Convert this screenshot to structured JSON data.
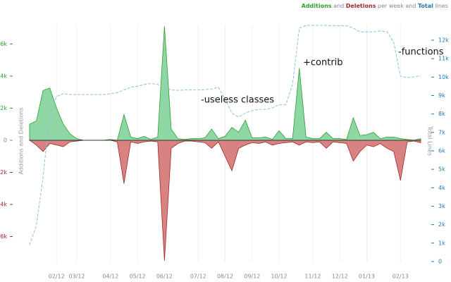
{
  "chart_data": {
    "type": "area",
    "legend_parts": [
      " and ",
      " per week and ",
      " lines"
    ],
    "ylabel": "Additions and Deletions",
    "y2label": "Total Lines",
    "annotations": [
      "-useless classes",
      "+contrib",
      "-functions"
    ],
    "categories": [
      null,
      null,
      null,
      null,
      "02/12",
      null,
      null,
      "03/12",
      null,
      null,
      null,
      null,
      "04/12",
      null,
      null,
      null,
      "05/12",
      null,
      null,
      null,
      "06/12",
      null,
      null,
      null,
      null,
      "07/12",
      null,
      null,
      null,
      "08/12",
      null,
      null,
      null,
      "09/12",
      null,
      null,
      null,
      "10/12",
      null,
      null,
      null,
      null,
      "11/12",
      null,
      null,
      null,
      "12/12",
      null,
      null,
      null,
      "01/13",
      null,
      null,
      null,
      null,
      "02/13",
      null,
      null,
      null
    ],
    "series": [
      {
        "name": "Additions",
        "color": "#2ca02c",
        "fill": "#8ed6a4",
        "values": [
          1000,
          1200,
          3100,
          3250,
          2000,
          1000,
          400,
          100,
          0,
          0,
          0,
          0,
          50,
          0,
          1600,
          200,
          100,
          250,
          50,
          200,
          7100,
          700,
          100,
          50,
          100,
          100,
          150,
          700,
          100,
          250,
          800,
          500,
          1250,
          150,
          150,
          200,
          50,
          600,
          100,
          100,
          4500,
          200,
          100,
          100,
          500,
          100,
          100,
          50,
          1400,
          300,
          350,
          500,
          100,
          200,
          200,
          100,
          50,
          0,
          100
        ]
      },
      {
        "name": "Deletions",
        "color": "#a02828",
        "fill": "#d98282",
        "values": [
          0,
          -300,
          -700,
          -200,
          -300,
          -400,
          -100,
          -50,
          0,
          0,
          0,
          0,
          0,
          -100,
          -2700,
          -100,
          -200,
          -100,
          -50,
          -100,
          -7500,
          -500,
          -200,
          -50,
          -50,
          -100,
          -150,
          -500,
          -100,
          -1000,
          -1900,
          -500,
          -300,
          -150,
          -200,
          -100,
          -300,
          -200,
          -150,
          -100,
          -300,
          -100,
          -150,
          -100,
          -500,
          -100,
          -150,
          -200,
          -1300,
          -700,
          -300,
          -400,
          -200,
          -500,
          -700,
          -2500,
          -100,
          -50,
          -150
        ]
      },
      {
        "name": "Total",
        "color": "#1f77b4",
        "line": "#8cc0e8",
        "axis": "y2",
        "values": [
          900,
          1950,
          4600,
          8050,
          8950,
          9100,
          9050,
          9050,
          9050,
          9050,
          9050,
          9050,
          9100,
          9150,
          9300,
          9450,
          9500,
          9600,
          9650,
          9600,
          9450,
          9300,
          9280,
          9300,
          9300,
          9300,
          9320,
          9350,
          9450,
          8800,
          8050,
          7830,
          8050,
          8180,
          8250,
          8250,
          8330,
          8500,
          8500,
          9600,
          12650,
          12800,
          12800,
          12800,
          12800,
          12780,
          12780,
          12780,
          12650,
          12450,
          12450,
          12450,
          12500,
          12450,
          11880,
          10050,
          9970,
          10000,
          10080
        ]
      }
    ],
    "ylim": [
      -7600,
      7200
    ],
    "yticks": [
      {
        "value": -6000,
        "label": "6k"
      },
      {
        "value": -4000,
        "label": "4k"
      },
      {
        "value": -2000,
        "label": "2k"
      },
      0,
      {
        "value": 2000,
        "label": "2k"
      },
      {
        "value": 4000,
        "label": "4k"
      },
      {
        "value": 6000,
        "label": "6k"
      }
    ],
    "y2lim": [
      -40,
      12840
    ],
    "y2ticks": [
      0,
      {
        "value": 1000,
        "label": "1k"
      },
      {
        "value": 2000,
        "label": "2k"
      },
      {
        "value": 3000,
        "label": "3k"
      },
      {
        "value": 4000,
        "label": "4k"
      },
      {
        "value": 5000,
        "label": "5k"
      },
      {
        "value": 6000,
        "label": "6k"
      },
      {
        "value": 7000,
        "label": "7k"
      },
      {
        "value": 8000,
        "label": "8k"
      },
      {
        "value": 9000,
        "label": "9k"
      },
      {
        "value": 10000,
        "label": "10k"
      },
      {
        "value": 11000,
        "label": "11k"
      },
      {
        "value": 12000,
        "label": "12k"
      }
    ],
    "grid": true
  }
}
